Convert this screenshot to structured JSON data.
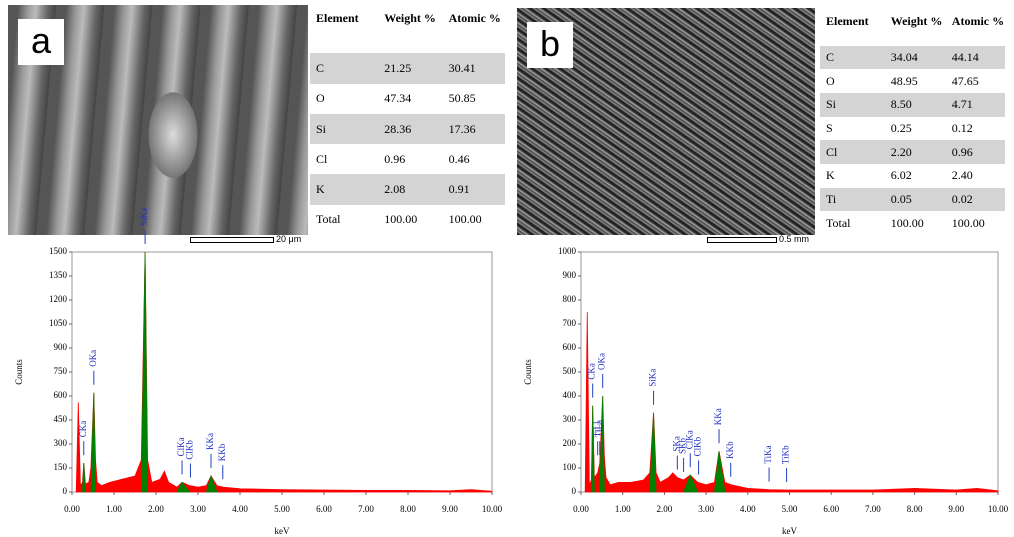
{
  "panels": [
    {
      "label": "a",
      "scale_bar": "20 μm",
      "table": {
        "header": [
          "Element",
          "Weight %",
          "Atomic %"
        ],
        "rows": [
          [
            "C",
            "21.25",
            "30.41"
          ],
          [
            "O",
            "47.34",
            "50.85"
          ],
          [
            "Si",
            "28.36",
            "17.36"
          ],
          [
            "Cl",
            "0.96",
            "0.46"
          ],
          [
            "K",
            "2.08",
            "0.91"
          ],
          [
            "Total",
            "100.00",
            "100.00"
          ]
        ]
      }
    },
    {
      "label": "b",
      "scale_bar": "0.5 mm",
      "table": {
        "header": [
          "Element",
          "Weight %",
          "Atomic %"
        ],
        "rows": [
          [
            "C",
            "34.04",
            "44.14"
          ],
          [
            "O",
            "48.95",
            "47.65"
          ],
          [
            "Si",
            "8.50",
            "4.71"
          ],
          [
            "S",
            "0.25",
            "0.12"
          ],
          [
            "Cl",
            "2.20",
            "0.96"
          ],
          [
            "K",
            "6.02",
            "2.40"
          ],
          [
            "Ti",
            "0.05",
            "0.02"
          ],
          [
            "Total",
            "100.00",
            "100.00"
          ]
        ]
      }
    }
  ],
  "chart_data": [
    {
      "type": "area",
      "xlabel": "keV",
      "ylabel": "Counts",
      "xlim": [
        0,
        10
      ],
      "ylim": [
        0,
        1500
      ],
      "xticks": [
        {
          "value": 0,
          "label": "0.00"
        },
        {
          "value": 1,
          "label": "1.00"
        },
        {
          "value": 2,
          "label": "2.00"
        },
        {
          "value": 3,
          "label": "3.00"
        },
        {
          "value": 4,
          "label": "4.00"
        },
        {
          "value": 5,
          "label": "5.00"
        },
        {
          "value": 6,
          "label": "6.00"
        },
        {
          "value": 7,
          "label": "7.00"
        },
        {
          "value": 8,
          "label": "8.00"
        },
        {
          "value": 9,
          "label": "9.00"
        },
        {
          "value": 10,
          "label": "10.00"
        }
      ],
      "yticks": [
        0,
        150,
        300,
        450,
        600,
        750,
        900,
        1050,
        1200,
        1350,
        1500
      ],
      "x": [
        0.1,
        0.15,
        0.2,
        0.25,
        0.28,
        0.32,
        0.4,
        0.45,
        0.52,
        0.56,
        0.6,
        0.7,
        0.9,
        1.2,
        1.5,
        1.65,
        1.74,
        1.8,
        1.9,
        2.1,
        2.2,
        2.3,
        2.5,
        2.62,
        2.8,
        3.0,
        3.2,
        3.31,
        3.45,
        3.6,
        4.0,
        5.0,
        6.0,
        7.0,
        8.0,
        9.0,
        9.5,
        10.0
      ],
      "series": [
        {
          "color": "#ff0000",
          "values": [
            0,
            560,
            40,
            60,
            180,
            50,
            60,
            150,
            620,
            200,
            60,
            40,
            60,
            80,
            100,
            200,
            1500,
            200,
            60,
            80,
            130,
            60,
            30,
            60,
            40,
            30,
            40,
            100,
            40,
            30,
            20,
            15,
            12,
            10,
            10,
            8,
            15,
            5
          ]
        },
        {
          "color": "#008000",
          "values": [
            null,
            null,
            null,
            0,
            180,
            0,
            null,
            0,
            620,
            0,
            null,
            null,
            null,
            null,
            null,
            0,
            1500,
            0,
            null,
            null,
            null,
            null,
            0,
            60,
            0,
            null,
            0,
            100,
            0,
            null,
            null,
            null,
            null,
            null,
            null,
            null,
            null,
            null
          ]
        }
      ],
      "peaks": [
        {
          "label": "CKa",
          "x": 0.28
        },
        {
          "label": "OKa",
          "x": 0.52
        },
        {
          "label": "SiKa",
          "x": 1.74
        },
        {
          "label": "ClKa",
          "x": 2.62
        },
        {
          "label": "ClKb",
          "x": 2.82
        },
        {
          "label": "KKa",
          "x": 3.31
        },
        {
          "label": "KKb",
          "x": 3.59
        }
      ]
    },
    {
      "type": "area",
      "xlabel": "keV",
      "ylabel": "Counts",
      "xlim": [
        0,
        10
      ],
      "ylim": [
        0,
        1000
      ],
      "xticks": [
        {
          "value": 0,
          "label": "0.00"
        },
        {
          "value": 1,
          "label": "1.00"
        },
        {
          "value": 2,
          "label": "2.00"
        },
        {
          "value": 3,
          "label": "3.00"
        },
        {
          "value": 4,
          "label": "4.00"
        },
        {
          "value": 5,
          "label": "5.00"
        },
        {
          "value": 6,
          "label": "6.00"
        },
        {
          "value": 7,
          "label": "7.00"
        },
        {
          "value": 8,
          "label": "8.00"
        },
        {
          "value": 9,
          "label": "9.00"
        },
        {
          "value": 10,
          "label": "10.00"
        }
      ],
      "yticks": [
        0,
        100,
        200,
        300,
        400,
        500,
        600,
        700,
        800,
        900,
        1000
      ],
      "x": [
        0.1,
        0.15,
        0.2,
        0.25,
        0.28,
        0.32,
        0.4,
        0.45,
        0.52,
        0.56,
        0.6,
        0.7,
        0.9,
        1.2,
        1.5,
        1.65,
        1.74,
        1.8,
        1.9,
        2.1,
        2.2,
        2.31,
        2.46,
        2.62,
        2.8,
        3.0,
        3.2,
        3.31,
        3.45,
        3.6,
        4.0,
        4.51,
        4.93,
        5.0,
        6.0,
        7.0,
        8.0,
        9.0,
        9.5,
        10.0
      ],
      "series": [
        {
          "color": "#ff0000",
          "values": [
            0,
            750,
            30,
            50,
            360,
            60,
            80,
            120,
            400,
            150,
            60,
            30,
            40,
            40,
            50,
            80,
            330,
            80,
            40,
            60,
            80,
            60,
            50,
            70,
            40,
            30,
            40,
            170,
            40,
            30,
            15,
            10,
            8,
            8,
            8,
            8,
            15,
            8,
            15,
            5
          ]
        },
        {
          "color": "#008000",
          "values": [
            null,
            null,
            null,
            0,
            360,
            0,
            null,
            0,
            400,
            0,
            null,
            null,
            null,
            null,
            null,
            0,
            330,
            0,
            null,
            null,
            null,
            null,
            0,
            70,
            0,
            null,
            0,
            170,
            0,
            null,
            null,
            0,
            null,
            null,
            null,
            null,
            null,
            null,
            null,
            null
          ]
        }
      ],
      "peaks": [
        {
          "label": "CKa",
          "x": 0.28
        },
        {
          "label": "TiLl",
          "x": 0.4
        },
        {
          "label": "TiLa",
          "x": 0.45
        },
        {
          "label": "OKa",
          "x": 0.52
        },
        {
          "label": "SiKa",
          "x": 1.74
        },
        {
          "label": "SKa",
          "x": 2.31
        },
        {
          "label": "SKb",
          "x": 2.46
        },
        {
          "label": "ClKa",
          "x": 2.62
        },
        {
          "label": "ClKb",
          "x": 2.82
        },
        {
          "label": "KKa",
          "x": 3.31
        },
        {
          "label": "KKb",
          "x": 3.59
        },
        {
          "label": "TiKa",
          "x": 4.51
        },
        {
          "label": "TiKb",
          "x": 4.93
        }
      ]
    }
  ]
}
